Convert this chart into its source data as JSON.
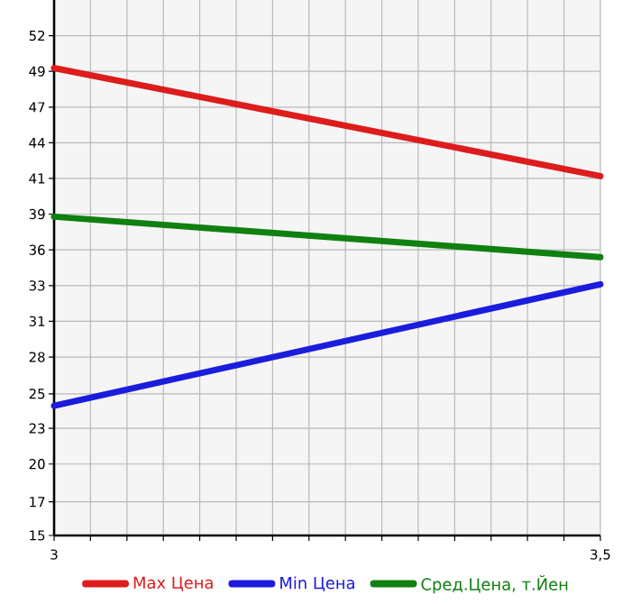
{
  "chart_data": {
    "type": "line",
    "x": [
      3,
      3.5
    ],
    "series": [
      {
        "name": "Max Цена",
        "color": "#dd1c1c",
        "values": [
          49.6,
          41.6
        ]
      },
      {
        "name": "Min Цена",
        "color": "#1c1cdd",
        "values": [
          24.6,
          33.6
        ]
      },
      {
        "name": "Сред.Цена, т.Йен",
        "color": "#108010",
        "values": [
          38.6,
          35.6
        ]
      }
    ],
    "xlim": [
      3,
      3.5
    ],
    "xticks": [
      3,
      {
        "value": 3.0333,
        "label": null
      },
      {
        "value": 3.0667,
        "label": null
      },
      {
        "value": 3.1,
        "label": null
      },
      {
        "value": 3.1333,
        "label": null
      },
      {
        "value": 3.1667,
        "label": null
      },
      {
        "value": 3.2,
        "label": null
      },
      {
        "value": 3.2333,
        "label": null
      },
      {
        "value": 3.2667,
        "label": null
      },
      {
        "value": 3.3,
        "label": null
      },
      {
        "value": 3.3333,
        "label": null
      },
      {
        "value": 3.3667,
        "label": null
      },
      {
        "value": 3.4,
        "label": null
      },
      {
        "value": 3.4333,
        "label": null
      },
      {
        "value": 3.4667,
        "label": null
      },
      {
        "value": 3.5,
        "label": "3,5"
      }
    ],
    "ylim": [
      15,
      54.64
    ],
    "yticks": [
      15,
      {
        "value": 17.49,
        "label": "17"
      },
      {
        "value": 20.29,
        "label": "20"
      },
      {
        "value": 22.93,
        "label": "23"
      },
      {
        "value": 25.49,
        "label": "25"
      },
      {
        "value": 28.21,
        "label": "28"
      },
      {
        "value": 30.86,
        "label": "31"
      },
      {
        "value": 33.5,
        "label": "33"
      },
      {
        "value": 36.14,
        "label": "36"
      },
      {
        "value": 38.79,
        "label": "39"
      },
      {
        "value": 41.43,
        "label": "41"
      },
      {
        "value": 44.07,
        "label": "44"
      },
      {
        "value": 46.71,
        "label": "47"
      },
      {
        "value": 49.36,
        "label": "49"
      },
      {
        "value": 52,
        "label": "52"
      }
    ],
    "grid": true,
    "legend": "bottom",
    "marker": "none",
    "line_style": "solid"
  }
}
